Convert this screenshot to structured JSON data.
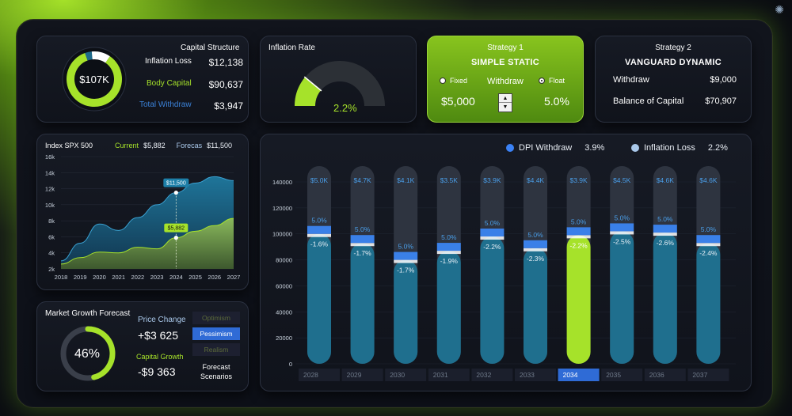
{
  "capital_structure": {
    "title": "Capital Structure",
    "center_value": "$107K",
    "rows": [
      {
        "label": "Inflation Loss",
        "value": "$12,138",
        "color": "#ffffff"
      },
      {
        "label": "Body Capital",
        "value": "$90,637",
        "color": "#a6e22a"
      },
      {
        "label": "Total Withdraw",
        "value": "$3,947",
        "color": "#3b82d8"
      }
    ],
    "segments": [
      {
        "name": "Body Capital",
        "fraction": 0.85,
        "color": "#a6e22a"
      },
      {
        "name": "Total Withdraw",
        "fraction": 0.04,
        "color": "#1e6a8a"
      },
      {
        "name": "Inflation Loss",
        "fraction": 0.11,
        "color": "#ffffff"
      }
    ]
  },
  "inflation_rate": {
    "title": "Inflation Rate",
    "value": "2.2%",
    "level": 0.22
  },
  "strategy1": {
    "title": "Strategy 1",
    "name": "SIMPLE STATIC",
    "fixed_label": "Fixed",
    "withdraw_label": "Withdraw",
    "float_label": "Float",
    "amount": "$5,000",
    "rate": "5.0%",
    "spin_up": "▲",
    "spin_down": "▼"
  },
  "strategy2": {
    "title": "Strategy 2",
    "name": "VANGUARD DYNAMIC",
    "withdraw_label": "Withdraw",
    "withdraw_value": "$9,000",
    "balance_label": "Balance of Capital",
    "balance_value": "$70,907"
  },
  "spx": {
    "title": "Index SPX 500",
    "current_label": "Current",
    "current_value": "$5,882",
    "forecast_label": "Forecas",
    "forecast_value": "$11,500",
    "marker_high": "$11,500",
    "marker_low": "$5,882"
  },
  "market_growth": {
    "title": "Market Growth Forecast",
    "percent": "46%",
    "level": 0.46,
    "price_change_label": "Price Change",
    "price_change_value": "+$3 625",
    "capital_growth_label": "Capital Growth",
    "capital_growth_value": "-$9 363",
    "scenarios": [
      "Optimism",
      "Pessimism",
      "Realism"
    ],
    "selected": "Pessimism",
    "forecast_label": "Forecast",
    "scenarios_label": "Scenarios"
  },
  "legend": {
    "dpi_label": "DPI Withdraw",
    "dpi_value": "3.9%",
    "dpi_color": "#3b82f6",
    "inflation_label": "Inflation Loss",
    "inflation_value": "2.2%",
    "inflation_color": "#a9c8ea"
  },
  "chart_data": [
    {
      "type": "area",
      "title": "Index SPX 500",
      "x": [
        2018,
        2019,
        2020,
        2021,
        2022,
        2023,
        2024,
        2025,
        2026,
        2027
      ],
      "ytick_labels": [
        "2k",
        "4k",
        "6k",
        "8k",
        "10k",
        "12k",
        "14k",
        "16k"
      ],
      "ylim": [
        2000,
        16000
      ],
      "series": [
        {
          "name": "Forecas",
          "color": "#1e6a8a",
          "points": [
            [
              2018,
              3000
            ],
            [
              2019,
              5200
            ],
            [
              2020,
              7600
            ],
            [
              2021,
              6800
            ],
            [
              2022,
              8400
            ],
            [
              2023,
              10000
            ],
            [
              2024,
              11500
            ],
            [
              2025,
              12700
            ],
            [
              2026,
              13500
            ],
            [
              2027,
              13000
            ]
          ]
        },
        {
          "name": "Current",
          "color": "#8ab55a",
          "points": [
            [
              2018,
              2600
            ],
            [
              2019,
              3400
            ],
            [
              2020,
              4100
            ],
            [
              2021,
              4000
            ],
            [
              2022,
              4700
            ],
            [
              2023,
              4500
            ],
            [
              2024,
              5882
            ],
            [
              2025,
              6700
            ],
            [
              2026,
              7400
            ],
            [
              2027,
              8300
            ]
          ]
        }
      ]
    },
    {
      "type": "bar",
      "categories": [
        "2028",
        "2029",
        "2030",
        "2031",
        "2032",
        "2033",
        "2034",
        "2035",
        "2036",
        "2037"
      ],
      "highlight": "2034",
      "ylim": [
        0,
        140000
      ],
      "ytick_labels": [
        "0",
        "20000",
        "40000",
        "60000",
        "80000",
        "100000",
        "120000",
        "140000"
      ],
      "series": [
        {
          "name": "Balance",
          "values": [
            100000,
            93000,
            80000,
            87000,
            98000,
            89000,
            99000,
            102000,
            101000,
            93000
          ]
        },
        {
          "name": "DPI Withdraw",
          "rates": [
            "5.0%",
            "5.0%",
            "5.0%",
            "5.0%",
            "5.0%",
            "5.0%",
            "5.0%",
            "5.0%",
            "5.0%",
            "5.0%"
          ],
          "amounts": [
            "$5.0K",
            "$4.7K",
            "$4.1K",
            "$3.5K",
            "$3.9K",
            "$4.4K",
            "$3.9K",
            "$4.5K",
            "$4.6K",
            "$4.6K"
          ]
        },
        {
          "name": "Inflation Loss",
          "rates": [
            "-1.6%",
            "-1.7%",
            "-1.7%",
            "-1.9%",
            "-2.2%",
            "-2.3%",
            "-2.2%",
            "-2.5%",
            "-2.6%",
            "-2.4%"
          ]
        }
      ]
    }
  ]
}
